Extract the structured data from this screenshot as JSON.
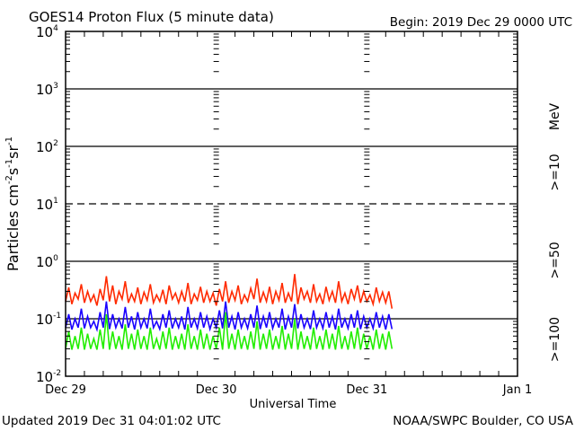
{
  "chart_data": {
    "type": "line",
    "title": "GOES14 Proton Flux (5 minute data)",
    "begin_label": "Begin: 2019 Dec 29 0000 UTC",
    "xlabel": "Universal Time",
    "ylabel_parts": {
      "base": "Particles cm",
      "e1": "-2",
      "s": "s",
      "e2": "-1",
      "sr": "sr",
      "e3": "-1"
    },
    "y_scale": "log",
    "ylim": [
      0.01,
      10000
    ],
    "y_ticks": [
      {
        "value": 10000,
        "base": "10",
        "exp": "4"
      },
      {
        "value": 1000,
        "base": "10",
        "exp": "3"
      },
      {
        "value": 100,
        "base": "10",
        "exp": "2"
      },
      {
        "value": 10,
        "base": "10",
        "exp": "1"
      },
      {
        "value": 1,
        "base": "10",
        "exp": "0"
      },
      {
        "value": 0.1,
        "base": "10",
        "exp": "-1"
      },
      {
        "value": 0.01,
        "base": "10",
        "exp": "-2"
      }
    ],
    "solid_gridlines": [
      1000,
      100,
      1,
      0.1
    ],
    "dashed_gridlines": [
      10
    ],
    "xlim_hours": [
      0,
      72
    ],
    "x_ticks": [
      {
        "hours": 0,
        "label": "Dec 29"
      },
      {
        "hours": 24,
        "label": "Dec 30"
      },
      {
        "hours": 48,
        "label": "Dec 31"
      },
      {
        "hours": 72,
        "label": "Jan 1"
      }
    ],
    "units_label": "MeV",
    "x_start_hours": 0,
    "step_hours": 0.5,
    "series": [
      {
        "name": ">=10",
        "color": "#ff2a00",
        "values": [
          0.2,
          0.35,
          0.18,
          0.28,
          0.22,
          0.4,
          0.19,
          0.3,
          0.2,
          0.26,
          0.17,
          0.33,
          0.21,
          0.55,
          0.2,
          0.38,
          0.18,
          0.3,
          0.22,
          0.45,
          0.19,
          0.27,
          0.2,
          0.35,
          0.18,
          0.29,
          0.21,
          0.4,
          0.19,
          0.26,
          0.2,
          0.32,
          0.18,
          0.38,
          0.22,
          0.28,
          0.19,
          0.3,
          0.2,
          0.42,
          0.18,
          0.27,
          0.21,
          0.36,
          0.19,
          0.3,
          0.2,
          0.28,
          0.17,
          0.33,
          0.2,
          0.45,
          0.19,
          0.3,
          0.21,
          0.38,
          0.18,
          0.26,
          0.2,
          0.34,
          0.22,
          0.5,
          0.19,
          0.29,
          0.2,
          0.36,
          0.18,
          0.3,
          0.21,
          0.42,
          0.19,
          0.28,
          0.2,
          0.6,
          0.18,
          0.35,
          0.22,
          0.3,
          0.19,
          0.4,
          0.2,
          0.27,
          0.18,
          0.36,
          0.21,
          0.3,
          0.19,
          0.45,
          0.2,
          0.28,
          0.18,
          0.33,
          0.22,
          0.38,
          0.19,
          0.3,
          0.2,
          0.26,
          0.18,
          0.35,
          0.2,
          0.29,
          0.19,
          0.3,
          0.15
        ]
      },
      {
        "name": ">=50",
        "color": "#1a00ff",
        "values": [
          0.07,
          0.12,
          0.065,
          0.1,
          0.07,
          0.15,
          0.068,
          0.11,
          0.07,
          0.09,
          0.065,
          0.13,
          0.07,
          0.2,
          0.066,
          0.12,
          0.07,
          0.1,
          0.068,
          0.16,
          0.07,
          0.11,
          0.065,
          0.13,
          0.07,
          0.1,
          0.068,
          0.15,
          0.07,
          0.09,
          0.066,
          0.12,
          0.07,
          0.14,
          0.068,
          0.1,
          0.07,
          0.11,
          0.065,
          0.16,
          0.07,
          0.1,
          0.068,
          0.13,
          0.07,
          0.11,
          0.066,
          0.1,
          0.07,
          0.14,
          0.068,
          0.2,
          0.07,
          0.11,
          0.065,
          0.13,
          0.07,
          0.1,
          0.068,
          0.12,
          0.07,
          0.17,
          0.066,
          0.11,
          0.07,
          0.13,
          0.068,
          0.1,
          0.07,
          0.15,
          0.065,
          0.11,
          0.07,
          0.18,
          0.068,
          0.12,
          0.07,
          0.1,
          0.066,
          0.14,
          0.07,
          0.1,
          0.068,
          0.13,
          0.07,
          0.11,
          0.065,
          0.15,
          0.07,
          0.1,
          0.068,
          0.12,
          0.07,
          0.14,
          0.066,
          0.11,
          0.07,
          0.1,
          0.068,
          0.13,
          0.07,
          0.11,
          0.065,
          0.12,
          0.066
        ]
      },
      {
        "name": ">=100",
        "color": "#22ee00",
        "values": [
          0.03,
          0.06,
          0.029,
          0.05,
          0.03,
          0.07,
          0.029,
          0.055,
          0.03,
          0.045,
          0.029,
          0.065,
          0.03,
          0.12,
          0.029,
          0.06,
          0.03,
          0.05,
          0.029,
          0.08,
          0.03,
          0.055,
          0.029,
          0.065,
          0.03,
          0.05,
          0.029,
          0.07,
          0.03,
          0.045,
          0.029,
          0.06,
          0.03,
          0.07,
          0.029,
          0.05,
          0.03,
          0.055,
          0.029,
          0.08,
          0.03,
          0.05,
          0.029,
          0.065,
          0.03,
          0.055,
          0.029,
          0.05,
          0.03,
          0.07,
          0.029,
          0.13,
          0.03,
          0.055,
          0.029,
          0.065,
          0.03,
          0.05,
          0.029,
          0.06,
          0.03,
          0.09,
          0.029,
          0.055,
          0.03,
          0.065,
          0.029,
          0.05,
          0.03,
          0.075,
          0.029,
          0.055,
          0.03,
          0.1,
          0.029,
          0.06,
          0.03,
          0.05,
          0.029,
          0.07,
          0.03,
          0.05,
          0.029,
          0.065,
          0.03,
          0.055,
          0.029,
          0.075,
          0.03,
          0.05,
          0.029,
          0.06,
          0.03,
          0.07,
          0.029,
          0.055,
          0.03,
          0.05,
          0.029,
          0.065,
          0.03,
          0.055,
          0.029,
          0.06,
          0.03
        ]
      }
    ]
  },
  "footer": {
    "updated": "Updated 2019 Dec 31 04:01:02 UTC",
    "credit": "NOAA/SWPC Boulder, CO USA"
  }
}
